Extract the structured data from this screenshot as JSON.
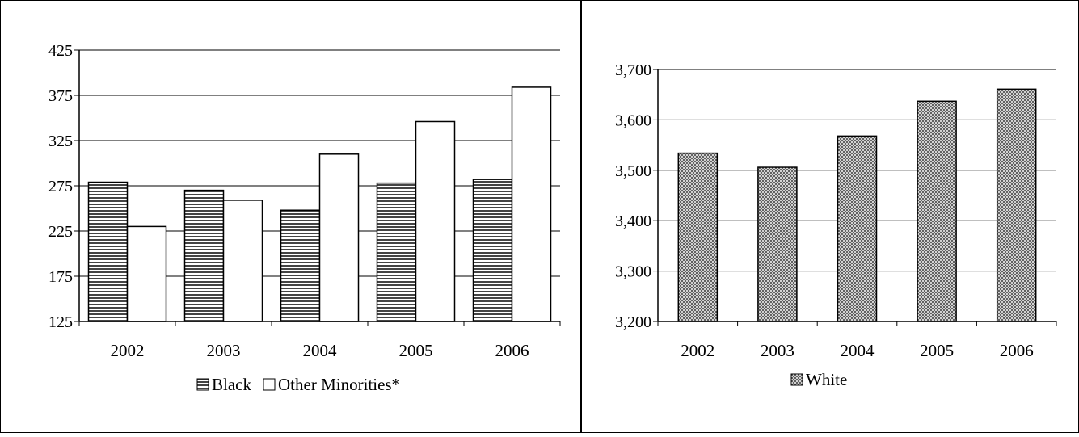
{
  "chart_data": [
    {
      "type": "bar",
      "categories": [
        "2002",
        "2003",
        "2004",
        "2005",
        "2006"
      ],
      "series": [
        {
          "name": "Black",
          "values": [
            279,
            270,
            248,
            278,
            282
          ],
          "pattern": "horizontal-hatch"
        },
        {
          "name": "Other Minorities*",
          "values": [
            230,
            259,
            310,
            346,
            384
          ],
          "pattern": "none"
        }
      ],
      "ylim": [
        125,
        425
      ],
      "yticks": [
        "125",
        "175",
        "225",
        "275",
        "325",
        "375",
        "425"
      ],
      "grid": true,
      "legend_position": "bottom"
    },
    {
      "type": "bar",
      "categories": [
        "2002",
        "2003",
        "2004",
        "2005",
        "2006"
      ],
      "series": [
        {
          "name": "White",
          "values": [
            3534,
            3506,
            3568,
            3637,
            3661
          ],
          "pattern": "crosshatch"
        }
      ],
      "ylim": [
        3200,
        3700
      ],
      "yticks": [
        "3,200",
        "3,300",
        "3,400",
        "3,500",
        "3,600",
        "3,700"
      ],
      "grid": true,
      "legend_position": "bottom"
    }
  ]
}
